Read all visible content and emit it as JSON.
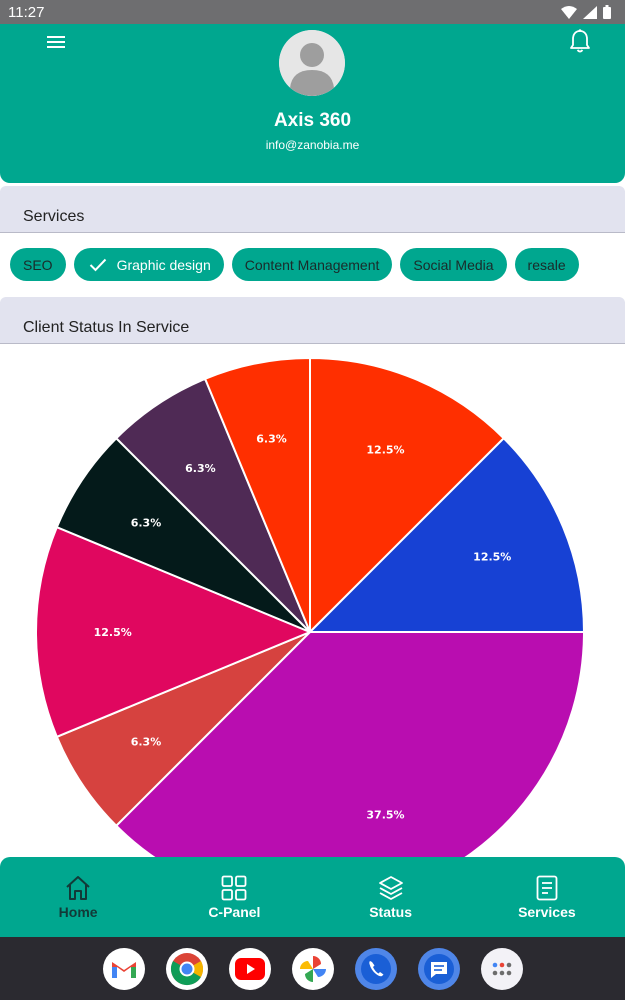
{
  "status_bar": {
    "time": "11:27"
  },
  "profile": {
    "name": "Axis 360",
    "email": "info@zanobia.me"
  },
  "services_section": {
    "title": "Services",
    "chips": [
      {
        "label": "SEO",
        "selected": false
      },
      {
        "label": "Graphic design",
        "selected": true
      },
      {
        "label": "Content Management",
        "selected": false
      },
      {
        "label": "Social Media",
        "selected": false
      },
      {
        "label": "resale",
        "selected": false
      }
    ]
  },
  "status_section": {
    "title": "Client Status In Service"
  },
  "chart_data": {
    "type": "pie",
    "slices": [
      {
        "label": "12.5%",
        "value": 12.5,
        "color": "#ff2f00"
      },
      {
        "label": "12.5%",
        "value": 12.5,
        "color": "#1741d4"
      },
      {
        "label": "37.5%",
        "value": 37.5,
        "color": "#b90db0"
      },
      {
        "label": "6.3%",
        "value": 6.25,
        "color": "#d6423f"
      },
      {
        "label": "12.5%",
        "value": 12.5,
        "color": "#e0075f"
      },
      {
        "label": "6.3%",
        "value": 6.25,
        "color": "#041a1a"
      },
      {
        "label": "6.3%",
        "value": 6.25,
        "color": "#4f2a55"
      },
      {
        "label": "6.3%",
        "value": 6.25,
        "color": "#ff2f00"
      }
    ]
  },
  "bottom_nav": [
    {
      "label": "Home",
      "icon": "home-icon",
      "active": true
    },
    {
      "label": "C-Panel",
      "icon": "grid-icon",
      "active": false
    },
    {
      "label": "Status",
      "icon": "layers-icon",
      "active": false
    },
    {
      "label": "Services",
      "icon": "document-icon",
      "active": false
    }
  ],
  "dock_apps": [
    "gmail-icon",
    "chrome-icon",
    "youtube-icon",
    "photos-icon",
    "phone-icon",
    "messages-icon",
    "app-drawer-icon"
  ],
  "colors": {
    "primary": "#00a78f",
    "section_bg": "#e2e3ef"
  }
}
